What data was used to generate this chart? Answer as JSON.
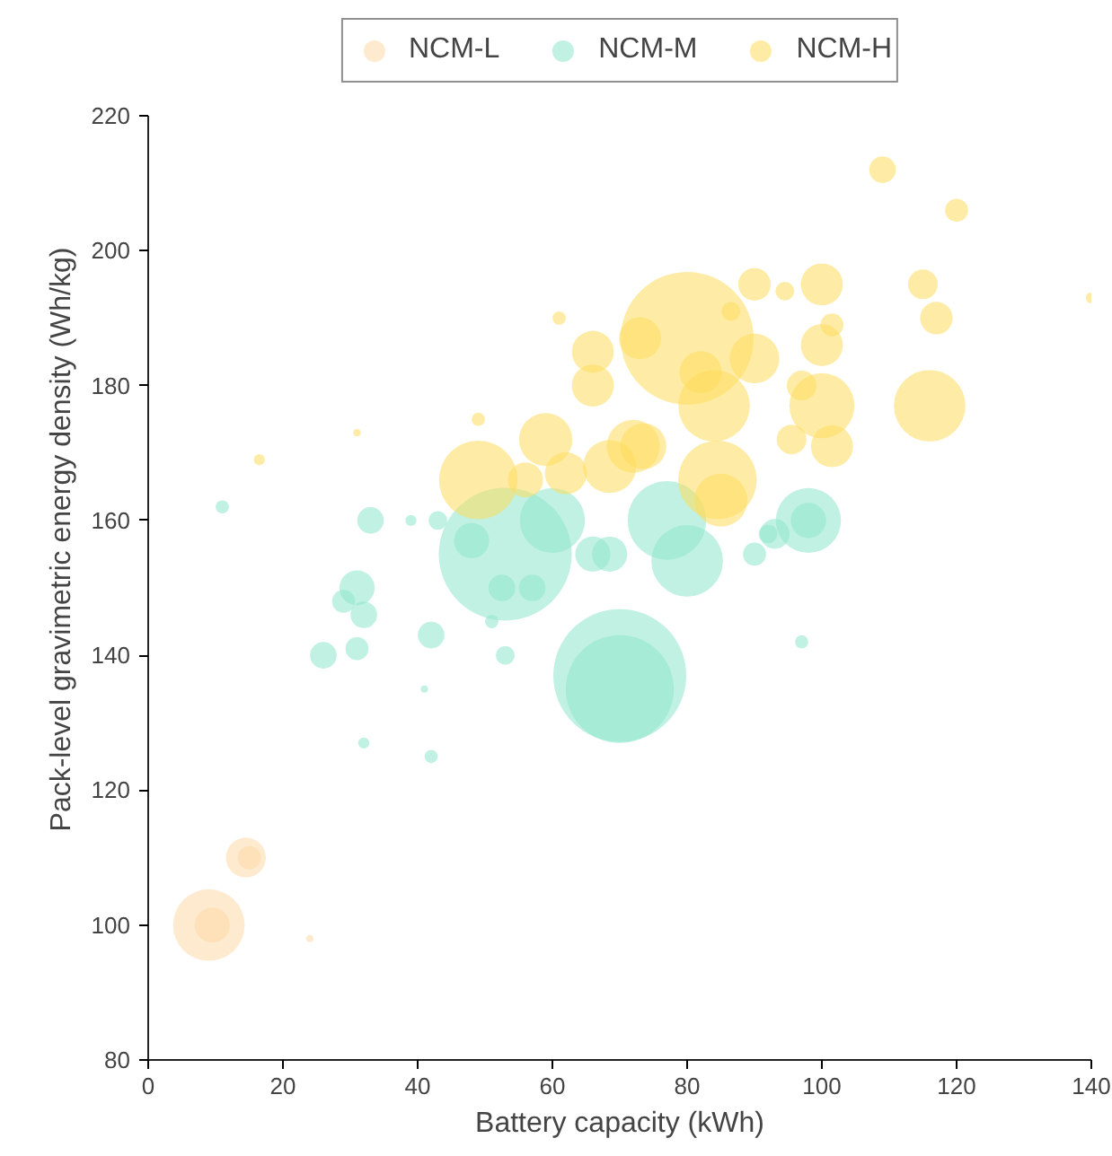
{
  "chart_data": {
    "type": "bubble",
    "xlabel": "Battery capacity (kWh)",
    "ylabel": "Pack-level gravimetric energy density (Wh/kg)",
    "xlim": [
      0,
      140
    ],
    "ylim": [
      80,
      220
    ],
    "xticks": [
      0,
      20,
      40,
      60,
      80,
      100,
      120,
      140
    ],
    "yticks": [
      80,
      100,
      120,
      140,
      160,
      180,
      200,
      220
    ],
    "grid": false,
    "legend": "top",
    "series": [
      {
        "name": "NCM-L",
        "color": "#fdd9a8",
        "x": [
          9,
          9.5,
          14.5,
          15,
          24
        ],
        "values": [
          100,
          100,
          110,
          110,
          98
        ],
        "sizes": [
          0.29,
          0.07,
          0.09,
          0.03,
          0.003
        ]
      },
      {
        "name": "NCM-M",
        "color": "#8ee6cc",
        "x": [
          70,
          70,
          53,
          80,
          77,
          98,
          98,
          93,
          60,
          66,
          68.5,
          57,
          52.5,
          48,
          42,
          31,
          32,
          29,
          26,
          31,
          33,
          39,
          43,
          42,
          32,
          41,
          11,
          53,
          51,
          97,
          90,
          92
        ],
        "values": [
          137,
          135,
          155,
          154,
          160,
          160,
          160,
          158,
          160,
          155,
          155,
          150,
          150,
          157,
          143,
          150,
          146,
          148,
          140,
          141,
          160,
          160,
          160,
          125,
          127,
          135,
          162,
          140,
          145,
          142,
          155,
          158
        ],
        "sizes": [
          1.0,
          0.66,
          1.0,
          0.29,
          0.35,
          0.24,
          0.07,
          0.05,
          0.24,
          0.07,
          0.07,
          0.04,
          0.04,
          0.07,
          0.04,
          0.07,
          0.04,
          0.03,
          0.04,
          0.03,
          0.04,
          0.007,
          0.02,
          0.01,
          0.007,
          0.003,
          0.01,
          0.02,
          0.01,
          0.01,
          0.03,
          0.02
        ]
      },
      {
        "name": "NCM-H",
        "color": "#fedd5c",
        "x": [
          80,
          84.5,
          84,
          100,
          116,
          109,
          120,
          140,
          115,
          117,
          100,
          90,
          100,
          94.5,
          66,
          49,
          59,
          73.5,
          61,
          66,
          49,
          16.5,
          31,
          62,
          68.5,
          56,
          73,
          86.5,
          90,
          101.5,
          97,
          95.5,
          72,
          85,
          82,
          101.5
        ],
        "values": [
          187,
          166,
          177,
          177,
          177,
          212,
          206,
          193,
          195,
          190,
          195,
          195,
          186,
          194,
          185,
          166,
          172,
          171,
          190,
          180,
          175,
          169,
          173,
          167,
          168,
          166,
          187,
          191,
          184,
          189,
          180,
          172,
          171,
          163,
          182,
          171
        ],
        "sizes": [
          1.0,
          0.35,
          0.29,
          0.24,
          0.29,
          0.04,
          0.03,
          0.007,
          0.05,
          0.06,
          0.1,
          0.06,
          0.1,
          0.02,
          0.1,
          0.35,
          0.16,
          0.12,
          0.01,
          0.1,
          0.01,
          0.007,
          0.003,
          0.1,
          0.16,
          0.07,
          0.1,
          0.02,
          0.14,
          0.03,
          0.05,
          0.05,
          0.16,
          0.16,
          0.1,
          0.1
        ]
      }
    ]
  }
}
